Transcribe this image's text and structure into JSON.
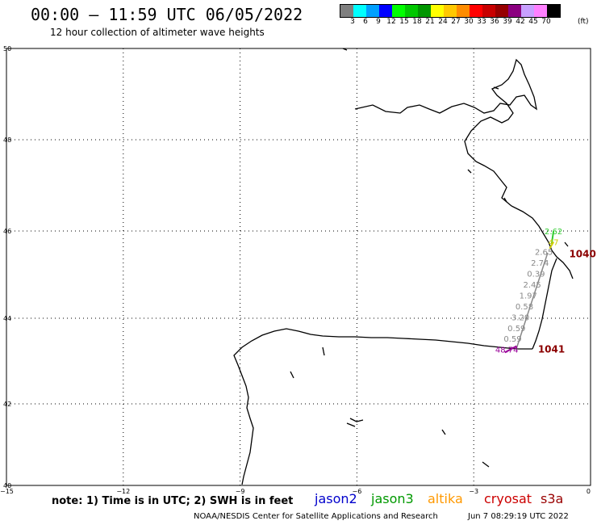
{
  "title": "00:00 — 11:59 UTC 06/05/2022",
  "subtitle": "12 hour collection of altimeter wave heights",
  "legend": {
    "colors": [
      "#7f7f7f",
      "#00ffff",
      "#00a0ff",
      "#0000ff",
      "#00ff00",
      "#00c800",
      "#009600",
      "#ffff00",
      "#ffc800",
      "#ff8c00",
      "#ff0000",
      "#c80000",
      "#960000",
      "#8b0080",
      "#c8a0ff",
      "#ff80ff",
      "#000000"
    ],
    "labels": [
      "3",
      "6",
      "9",
      "12",
      "15",
      "18",
      "21",
      "24",
      "27",
      "30",
      "33",
      "36",
      "39",
      "42",
      "45",
      "70"
    ],
    "unit": "(ft)"
  },
  "axes": {
    "y_labels": [
      "50",
      "48",
      "46",
      "44",
      "42",
      "40"
    ],
    "x_labels": [
      "−15",
      "−12",
      "−9",
      "−6",
      "−3",
      "0"
    ]
  },
  "tracks": [
    {
      "name": "track-green",
      "color": "#33cc33",
      "labels": [
        {
          "text": "2.62",
          "lon": -0.95,
          "lat": 45.93
        }
      ]
    },
    {
      "name": "track-yellow",
      "color": "#cccc00",
      "labels": [
        {
          "text": "47",
          "lon": -0.95,
          "lat": 45.68
        }
      ]
    },
    {
      "name": "track-grey",
      "color": "#888888",
      "labels": [
        {
          "text": "2.65",
          "lon": -1.2,
          "lat": 45.45
        },
        {
          "text": "2.74",
          "lon": -1.3,
          "lat": 45.2
        },
        {
          "text": "0.39",
          "lon": -1.4,
          "lat": 44.95
        },
        {
          "text": "2.45",
          "lon": -1.5,
          "lat": 44.7
        },
        {
          "text": "1.97",
          "lon": -1.6,
          "lat": 44.45
        },
        {
          "text": "0.58",
          "lon": -1.7,
          "lat": 44.2
        },
        {
          "text": "3.20",
          "lon": -1.8,
          "lat": 43.95
        },
        {
          "text": "0.59",
          "lon": -1.9,
          "lat": 43.7
        },
        {
          "text": "0.59",
          "lon": -2.0,
          "lat": 43.45
        }
      ]
    },
    {
      "name": "track-purple",
      "color": "#990099",
      "labels": [
        {
          "text": "48.74",
          "lon": -2.15,
          "lat": 43.2
        }
      ]
    }
  ],
  "pressure_labels": [
    {
      "text": "1040",
      "lon": -0.55,
      "lat": 45.4,
      "color": "#8b0000"
    },
    {
      "text": "1041",
      "lon": -1.35,
      "lat": 43.2,
      "color": "#8b0000"
    }
  ],
  "note": "note: 1) Time is in UTC; 2) SWH is in feet",
  "satellites": [
    {
      "name": "jason2",
      "color": "#0000cc"
    },
    {
      "name": "jason3",
      "color": "#009900"
    },
    {
      "name": "altika",
      "color": "#ff9900"
    },
    {
      "name": "cryosat",
      "color": "#cc0000"
    },
    {
      "name": "s3a",
      "color": "#990000"
    }
  ],
  "credit": "NOAA/NESDIS Center for Satellite Applications and Research",
  "timestamp": "Jun  7 08:29:19 UTC 2022"
}
